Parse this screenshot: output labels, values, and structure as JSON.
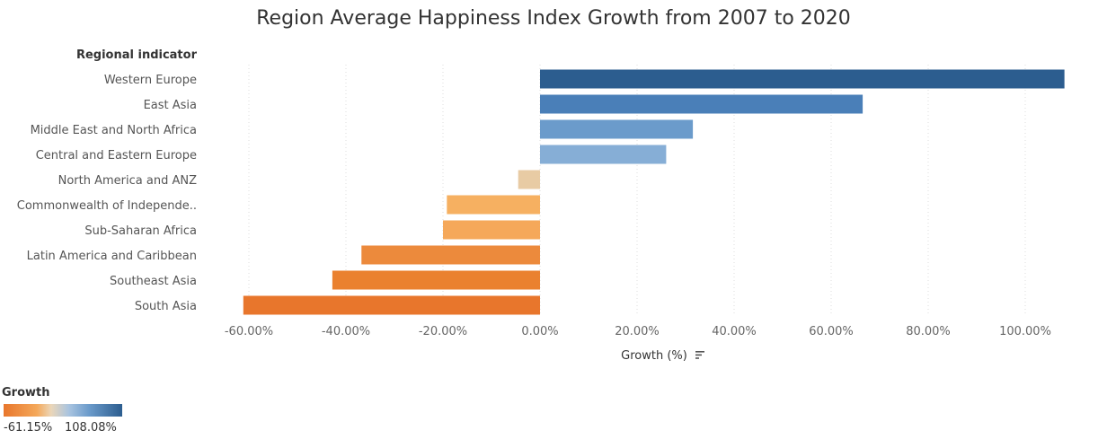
{
  "chart_data": {
    "type": "bar",
    "orientation": "horizontal",
    "title": "Region Average Happiness Index Growth from 2007 to 2020",
    "row_header": "Regional indicator",
    "xlabel": "Growth (%)",
    "xlim": [
      -65,
      110
    ],
    "x_ticks": [
      -60,
      -40,
      -20,
      0,
      20,
      40,
      60,
      80,
      100
    ],
    "x_tick_labels": [
      "-60.00%",
      "-40.00%",
      "-20.00%",
      "0.00%",
      "20.00%",
      "40.00%",
      "60.00%",
      "80.00%",
      "100.00%"
    ],
    "grid": "vertical-dotted",
    "categories": [
      "Western Europe",
      "East Asia",
      "Middle East and North Africa",
      "Central and Eastern Europe",
      "North America and ANZ",
      "Commonwealth of Independe..",
      "Sub-Saharan Africa",
      "Latin America and Caribbean",
      "Southeast Asia",
      "South Asia"
    ],
    "values": [
      108.08,
      66.5,
      31.5,
      26.0,
      -4.5,
      -19.2,
      -20.0,
      -36.8,
      -42.8,
      -61.15
    ],
    "colors": [
      "#2c5d8f",
      "#4a7fb8",
      "#6b9bcb",
      "#86aed6",
      "#e8cba4",
      "#f6b061",
      "#f5a85a",
      "#ec8a3c",
      "#ea812f",
      "#e8762c"
    ],
    "legend": {
      "title": "Growth",
      "min_label": "-61.15%",
      "max_label": "108.08%",
      "placement": "bottom-left"
    }
  }
}
